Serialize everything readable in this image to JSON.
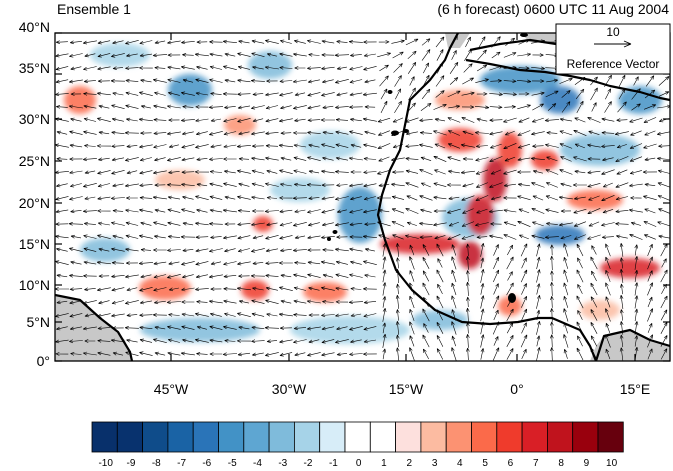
{
  "header": {
    "left_title": "Ensemble 1",
    "right_title": "(6 h forecast) 0600 UTC 11 Aug 2004"
  },
  "reference_vector": {
    "magnitude": "10",
    "label": "Reference Vector"
  },
  "axes": {
    "lat_labels": [
      "40°N",
      "35°N",
      "30°N",
      "25°N",
      "20°N",
      "15°N",
      "10°N",
      "5°N",
      "0°"
    ],
    "lon_labels": [
      "45°W",
      "30°W",
      "15°W",
      "0°",
      "15°E"
    ]
  },
  "colorbar": {
    "labels": [
      "-10",
      "-9",
      "-8",
      "-7",
      "-6",
      "-5",
      "-4",
      "-3",
      "-2",
      "-1",
      "0",
      "1",
      "2",
      "3",
      "4",
      "5",
      "6",
      "7",
      "8",
      "9",
      "10"
    ],
    "colors": [
      "#08306b",
      "#08326e",
      "#0f4c8a",
      "#1a63a5",
      "#2a74b8",
      "#4292c6",
      "#5ea6d2",
      "#7fbbdb",
      "#a6d3e8",
      "#d7edf8",
      "#ffffff",
      "#ffffff",
      "#fde0dd",
      "#fcbba1",
      "#fc9272",
      "#fb6a4a",
      "#ef3b2c",
      "#d91f26",
      "#c0131d",
      "#99000d",
      "#67000d"
    ]
  },
  "colors": {
    "land": "#c8c8c8",
    "coast": "#000000",
    "vector": "#000000"
  }
}
